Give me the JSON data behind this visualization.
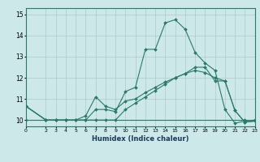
{
  "title": "",
  "xlabel": "Humidex (Indice chaleur)",
  "bg_color": "#cce8e8",
  "grid_color": "#b0c8c8",
  "line_color": "#2a7a6a",
  "xlim": [
    0,
    23
  ],
  "ylim": [
    9.7,
    15.3
  ],
  "xticks": [
    0,
    2,
    3,
    4,
    5,
    6,
    7,
    8,
    9,
    10,
    11,
    12,
    13,
    14,
    15,
    16,
    17,
    18,
    19,
    20,
    21,
    22,
    23
  ],
  "yticks": [
    10,
    11,
    12,
    13,
    14,
    15
  ],
  "series": [
    {
      "x": [
        0,
        2,
        22,
        23
      ],
      "y": [
        10.0,
        10.0,
        10.0,
        10.0
      ]
    },
    {
      "x": [
        0,
        2,
        3,
        4,
        5,
        6,
        7,
        8,
        9,
        10,
        11,
        12,
        13,
        14,
        15,
        16,
        17,
        18,
        19,
        20,
        21,
        22,
        23
      ],
      "y": [
        10.65,
        10.0,
        10.0,
        10.0,
        10.0,
        10.0,
        10.5,
        10.5,
        10.4,
        11.35,
        11.55,
        13.35,
        13.35,
        14.6,
        14.75,
        14.3,
        13.2,
        12.7,
        12.35,
        10.5,
        9.85,
        9.95,
        10.0
      ]
    },
    {
      "x": [
        0,
        2,
        3,
        4,
        5,
        6,
        7,
        8,
        9,
        10,
        11,
        12,
        13,
        14,
        15,
        16,
        17,
        18,
        19,
        20,
        21,
        22,
        23
      ],
      "y": [
        10.65,
        10.0,
        10.0,
        10.0,
        10.0,
        10.2,
        11.1,
        10.65,
        10.5,
        10.9,
        11.0,
        11.3,
        11.55,
        11.8,
        12.0,
        12.2,
        12.5,
        12.5,
        11.85,
        11.85,
        10.45,
        9.9,
        9.95
      ]
    },
    {
      "x": [
        0,
        2,
        3,
        4,
        5,
        6,
        7,
        8,
        9,
        10,
        11,
        12,
        13,
        14,
        15,
        16,
        17,
        18,
        19,
        20,
        21,
        22,
        23
      ],
      "y": [
        10.65,
        10.0,
        10.0,
        10.0,
        10.0,
        10.0,
        10.0,
        10.0,
        10.0,
        10.5,
        10.8,
        11.1,
        11.4,
        11.7,
        12.0,
        12.2,
        12.35,
        12.25,
        12.0,
        11.85,
        10.45,
        9.9,
        9.95
      ]
    }
  ]
}
